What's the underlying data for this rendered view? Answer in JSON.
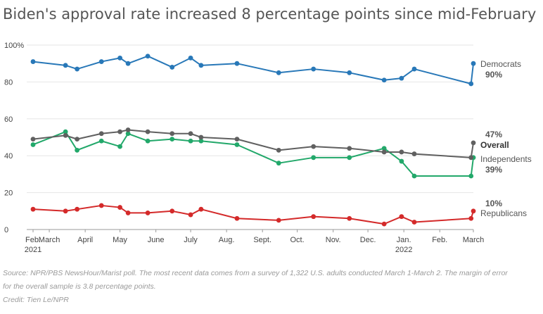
{
  "title": "Biden's approval rate increased 8 percentage points since mid-February",
  "source_line1": "Source: NPR/PBS NewsHour/Marist poll. The most recent data comes from a survey of 1,322 U.S. adults conducted March 1-March 2. The margin of error",
  "source_line2": "for the overall sample is 3.8 percentage points.",
  "credit": "Credit: Tien Le/NPR",
  "chart_data": {
    "type": "line",
    "ylim": [
      0,
      100
    ],
    "y_ticks": [
      "0",
      "20",
      "40",
      "60",
      "80",
      "100%"
    ],
    "x_ticks": [
      "Feb.",
      "March",
      "April",
      "May",
      "June",
      "July",
      "Aug.",
      "Sept.",
      "Oct.",
      "Nov.",
      "Dec.",
      "Jan.",
      "Feb.",
      "March"
    ],
    "year_labels": [
      "2021",
      "2022"
    ],
    "grid": true,
    "x": [
      "2021-02-15",
      "2021-03-15",
      "2021-03-25",
      "2021-04-15",
      "2021-05-01",
      "2021-05-08",
      "2021-05-25",
      "2021-06-15",
      "2021-07-01",
      "2021-07-10",
      "2021-08-10",
      "2021-09-15",
      "2021-10-15",
      "2021-11-15",
      "2021-12-15",
      "2021-12-30",
      "2022-01-10",
      "2022-02-28",
      "2022-03-02"
    ],
    "series": [
      {
        "name": "Democrats",
        "end_label": "90%",
        "color": "#2878b8",
        "values": [
          91,
          89,
          87,
          91,
          93,
          90,
          94,
          88,
          93,
          89,
          90,
          85,
          87,
          85,
          81,
          82,
          87,
          79,
          90
        ]
      },
      {
        "name": "Overall",
        "end_label": "47%",
        "color": "#606060",
        "values": [
          49,
          51,
          49,
          52,
          53,
          54,
          53,
          52,
          52,
          50,
          49,
          43,
          45,
          44,
          42,
          42,
          41,
          39,
          47
        ]
      },
      {
        "name": "Independents",
        "end_label": "39%",
        "color": "#22a86a",
        "values": [
          46,
          53,
          43,
          48,
          45,
          52,
          48,
          49,
          48,
          48,
          46,
          36,
          39,
          39,
          44,
          37,
          29,
          29,
          39
        ]
      },
      {
        "name": "Republicans",
        "end_label": "10%",
        "color": "#d42a2a",
        "values": [
          11,
          10,
          11,
          13,
          12,
          9,
          9,
          10,
          8,
          11,
          6,
          5,
          7,
          6,
          3,
          7,
          4,
          6,
          10
        ]
      }
    ]
  }
}
